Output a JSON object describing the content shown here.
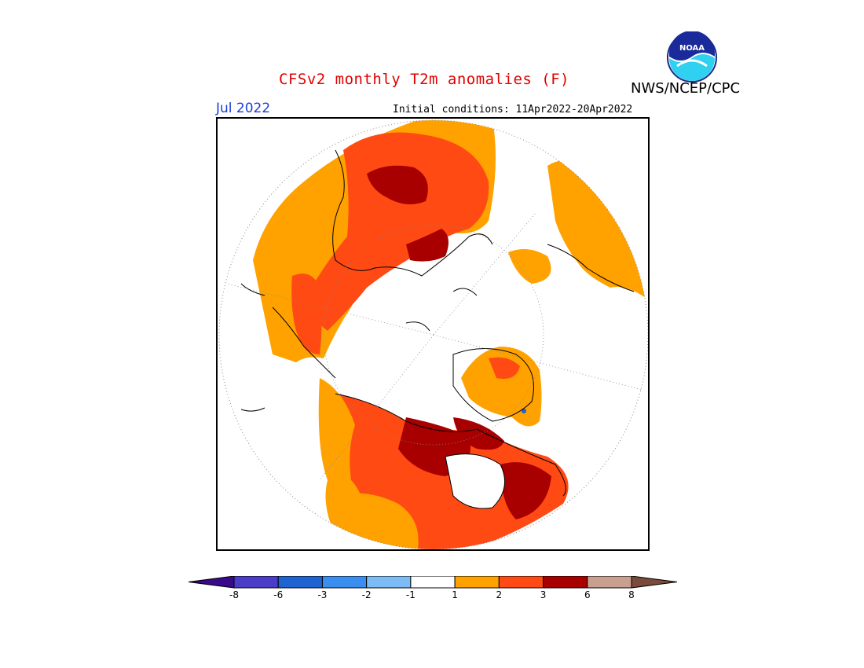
{
  "title": "CFSv2 monthly T2m anomalies (F)",
  "agency": "NWS/NCEP/CPC",
  "month": "Jul 2022",
  "initial_conditions": "Initial conditions: 11Apr2022-20Apr2022",
  "logo": {
    "text": "NOAA",
    "icon": "noaa-logo-icon"
  },
  "legend": {
    "ticks": [
      "-8",
      "-6",
      "-3",
      "-2",
      "-1",
      "1",
      "2",
      "3",
      "6",
      "8"
    ],
    "colors": [
      "#3a0a8c",
      "#4b3dc8",
      "#1f63d0",
      "#3a8ef0",
      "#7dbbf5",
      "#ffffff",
      "#ffa200",
      "#ff4a14",
      "#a80000",
      "#c9a090",
      "#7a4a3a"
    ]
  },
  "map": {
    "projection": "north-polar-stereographic",
    "fill_colors": {
      "anomaly_1_2": "#ffa200",
      "anomaly_2_3": "#ff4a14",
      "anomaly_3_6": "#a80000",
      "anomaly_neg": "#1f63d0"
    }
  }
}
